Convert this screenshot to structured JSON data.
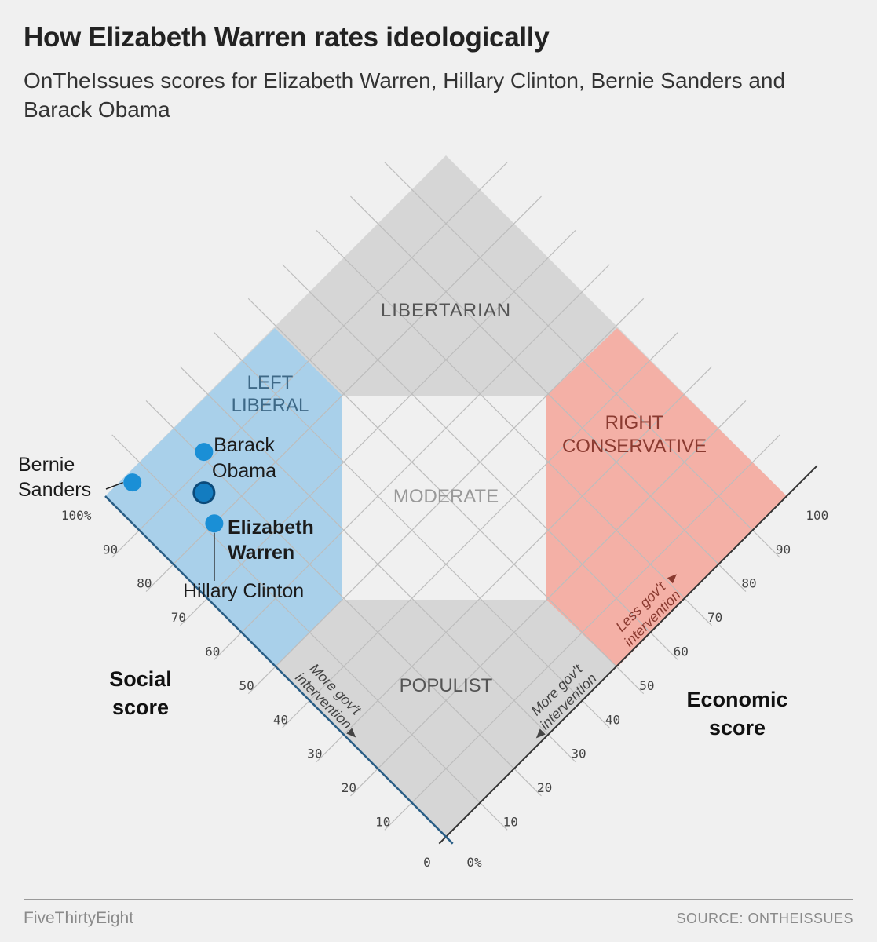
{
  "chart_data": {
    "type": "scatter",
    "title": "How Elizabeth Warren rates ideologically",
    "subtitle": "OnTheIssues scores for Elizabeth Warren, Hillary Clinton, Bernie Sanders and Barack Obama",
    "x_axis": {
      "label_line1": "Economic",
      "label_line2": "score",
      "range": [
        0,
        100
      ],
      "ticks": [
        "10",
        "20",
        "30",
        "40",
        "50",
        "60",
        "70",
        "80",
        "90",
        "100"
      ],
      "zero_label": "0%",
      "annotation_low": [
        "More gov't",
        "intervention"
      ],
      "annotation_high": [
        "Less gov't",
        "intervention"
      ]
    },
    "y_axis": {
      "label_line1": "Social",
      "label_line2": "score",
      "range": [
        0,
        100
      ],
      "ticks": [
        "10",
        "20",
        "30",
        "40",
        "50",
        "60",
        "70",
        "80",
        "90",
        "100%"
      ],
      "zero_label": "0",
      "annotation_low": [
        "More gov't",
        "intervention"
      ]
    },
    "regions": {
      "libertarian": [
        "LIBERTARIAN"
      ],
      "left_liberal": [
        "LEFT",
        "LIBERAL"
      ],
      "right_conservative": [
        "RIGHT",
        "CONSERVATIVE"
      ],
      "moderate": [
        "MODERATE"
      ],
      "populist": [
        "POPULIST"
      ]
    },
    "colors": {
      "liberal_fill": "#a9d0ea",
      "conservative_fill": "#f4b0a6",
      "gray_fill": "#d6d6d6",
      "moderate_fill": "#f0f0f0",
      "point": "#1a8fd6",
      "highlight_point": "#137cc0"
    },
    "points": [
      {
        "name": "Bernie Sanders",
        "label_lines": [
          "Bernie",
          "Sanders"
        ],
        "economic": 6,
        "social": 98,
        "highlight": false
      },
      {
        "name": "Barack Obama",
        "label_lines": [
          "Barack",
          "Obama"
        ],
        "economic": 21,
        "social": 92,
        "highlight": false
      },
      {
        "name": "Elizabeth Warren",
        "label_lines": [
          "Elizabeth",
          "Warren"
        ],
        "economic": 15,
        "social": 86,
        "highlight": true
      },
      {
        "name": "Hillary Clinton",
        "label_lines": [
          "Hillary Clinton"
        ],
        "economic": 12,
        "social": 80,
        "highlight": false
      }
    ]
  },
  "footer": {
    "brand": "FiveThirtyEight",
    "source": "SOURCE: ONTHEISSUES"
  }
}
